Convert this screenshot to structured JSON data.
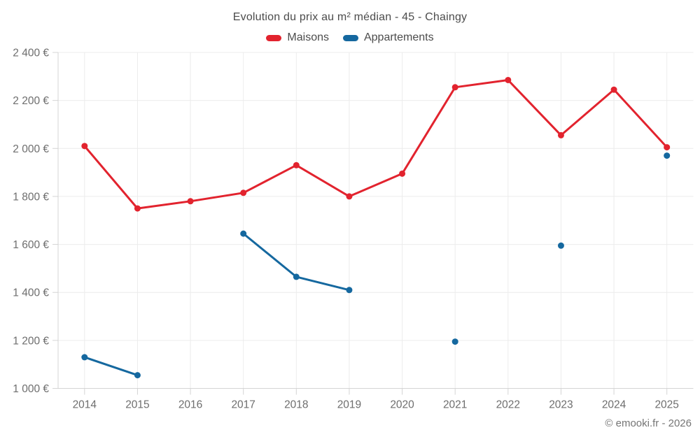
{
  "header": {
    "title": "Evolution du prix au m² médian - 45 - Chaingy"
  },
  "footer": {
    "attribution": "© emooki.fr - 2026"
  },
  "colors": {
    "maisons": "#e2232e",
    "appartements": "#15689f",
    "gridline": "#ececec",
    "axis": "#d4d4d4",
    "tick_text": "#6e6e6e",
    "title_text": "#4c4c4c",
    "attribution_text": "#757575"
  },
  "chart_data": {
    "type": "line",
    "title": "Evolution du prix au m² médian - 45 - Chaingy",
    "categories": [
      "2014",
      "2015",
      "2016",
      "2017",
      "2018",
      "2019",
      "2020",
      "2021",
      "2022",
      "2023",
      "2024",
      "2025"
    ],
    "series": [
      {
        "name": "Maisons",
        "color": "#e2232e",
        "values": [
          2010,
          1750,
          1780,
          1815,
          1930,
          1800,
          1895,
          2255,
          2285,
          2055,
          2245,
          2005
        ]
      },
      {
        "name": "Appartements",
        "color": "#15689f",
        "values": [
          1130,
          1055,
          null,
          1645,
          1465,
          1410,
          null,
          1195,
          null,
          1595,
          null,
          1970
        ]
      }
    ],
    "xlabel": "",
    "ylabel": "",
    "ylim": [
      1000,
      2400
    ],
    "y_ticks": [
      {
        "value": 1000,
        "label": "1 000 €"
      },
      {
        "value": 1200,
        "label": "1 200 €"
      },
      {
        "value": 1400,
        "label": "1 400 €"
      },
      {
        "value": 1600,
        "label": "1 600 €"
      },
      {
        "value": 1800,
        "label": "1 800 €"
      },
      {
        "value": 2000,
        "label": "2 000 €"
      },
      {
        "value": 2200,
        "label": "2 200 €"
      },
      {
        "value": 2400,
        "label": "2 400 €"
      }
    ],
    "grid": true,
    "legend_position": "top"
  }
}
